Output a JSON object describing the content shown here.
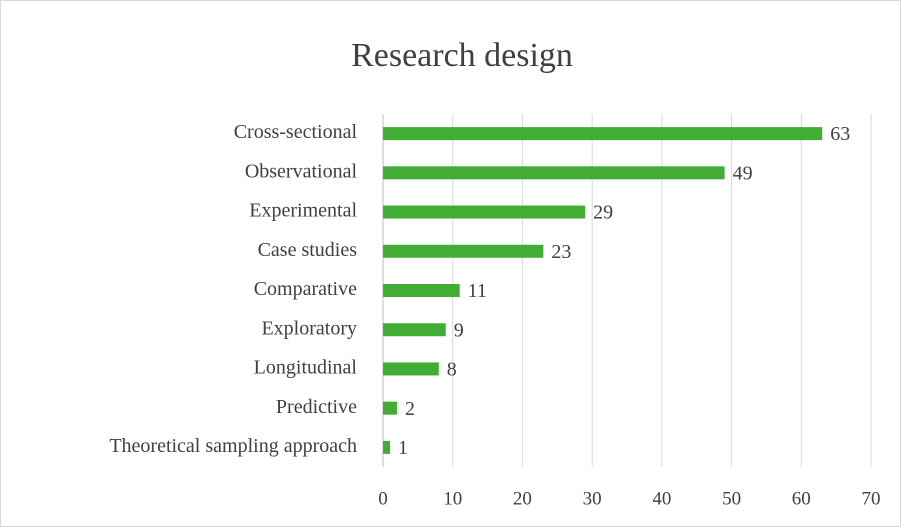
{
  "chart_data": {
    "type": "bar",
    "orientation": "horizontal",
    "title": "Research design",
    "categories": [
      "Cross-sectional",
      "Observational",
      "Experimental",
      "Case studies",
      "Comparative",
      "Exploratory",
      "Longitudinal",
      "Predictive",
      "Theoretical sampling approach"
    ],
    "values": [
      63,
      49,
      29,
      23,
      11,
      9,
      8,
      2,
      1
    ],
    "color": "#41ad34",
    "xlim": [
      0,
      70
    ],
    "xticks": [
      0,
      10,
      20,
      30,
      40,
      50,
      60,
      70
    ],
    "grid": true
  }
}
